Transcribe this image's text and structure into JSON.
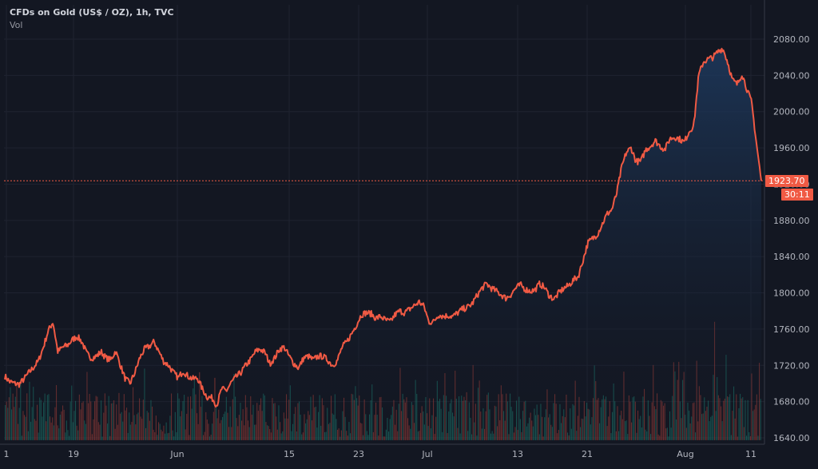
{
  "legend": {
    "symbol": "CFDs on Gold (US$ / OZ), 1h, TVC",
    "volume_label": "Vol"
  },
  "colors": {
    "background": "#131722",
    "line": "#f05a44",
    "area_top": "#1e3a5f",
    "grid": "#1f2330",
    "vol_up": "#1e8c7b",
    "vol_down": "#c0463c"
  },
  "last_price": "1923.70",
  "countdown": "30:11",
  "chart_data": {
    "type": "area",
    "title": "CFDs on Gold (US$ / OZ), 1h, TVC",
    "xlabel": "",
    "ylabel": "",
    "ylim": [
      1640,
      2080
    ],
    "yticks": [
      1640,
      1680,
      1720,
      1760,
      1800,
      1840,
      1880,
      1920,
      1960,
      2000,
      2040,
      2080
    ],
    "ytick_labels": [
      "1640.00",
      "1680.00",
      "1720.00",
      "1760.00",
      "1800.00",
      "1840.00",
      "1880.00",
      "1920.00",
      "1960.00",
      "2000.00",
      "2040.00",
      "2080.00"
    ],
    "x_tick_labels": [
      "1",
      "19",
      "Jun",
      "15",
      "23",
      "Jul",
      "13",
      "21",
      "Aug",
      "11"
    ],
    "series": [
      {
        "values": [
          1708,
          1702,
          1700,
          1699,
          1705,
          1712,
          1718,
          1725,
          1740,
          1758,
          1768,
          1735,
          1740,
          1742,
          1748,
          1752,
          1746,
          1733,
          1728,
          1730,
          1735,
          1728,
          1726,
          1736,
          1720,
          1705,
          1700,
          1712,
          1728,
          1738,
          1741,
          1746,
          1735,
          1724,
          1720,
          1712,
          1706,
          1714,
          1708,
          1705,
          1706,
          1694,
          1685,
          1684,
          1676,
          1694,
          1692,
          1701,
          1707,
          1712,
          1720,
          1726,
          1735,
          1738,
          1734,
          1722,
          1728,
          1738,
          1740,
          1730,
          1722,
          1717,
          1728,
          1730,
          1726,
          1730,
          1730,
          1726,
          1720,
          1725,
          1740,
          1746,
          1755,
          1765,
          1776,
          1778,
          1777,
          1772,
          1774,
          1770,
          1768,
          1776,
          1780,
          1778,
          1782,
          1786,
          1790,
          1785,
          1768,
          1768,
          1776,
          1774,
          1775,
          1774,
          1778,
          1782,
          1784,
          1788,
          1797,
          1805,
          1810,
          1805,
          1802,
          1798,
          1794,
          1798,
          1805,
          1809,
          1804,
          1802,
          1803,
          1810,
          1806,
          1797,
          1793,
          1800,
          1805,
          1808,
          1814,
          1818,
          1836,
          1855,
          1860,
          1865,
          1876,
          1887,
          1892,
          1910,
          1938,
          1955,
          1960,
          1945,
          1945,
          1958,
          1962,
          1968,
          1962,
          1958,
          1970,
          1972,
          1970,
          1966,
          1978,
          1985,
          2040,
          2055,
          2058,
          2060,
          2066,
          2070,
          2055,
          2035,
          2030,
          2042,
          2025,
          2010,
          1965,
          1923.7
        ]
      }
    ],
    "volume_note": "relative volume histogram beneath price"
  }
}
